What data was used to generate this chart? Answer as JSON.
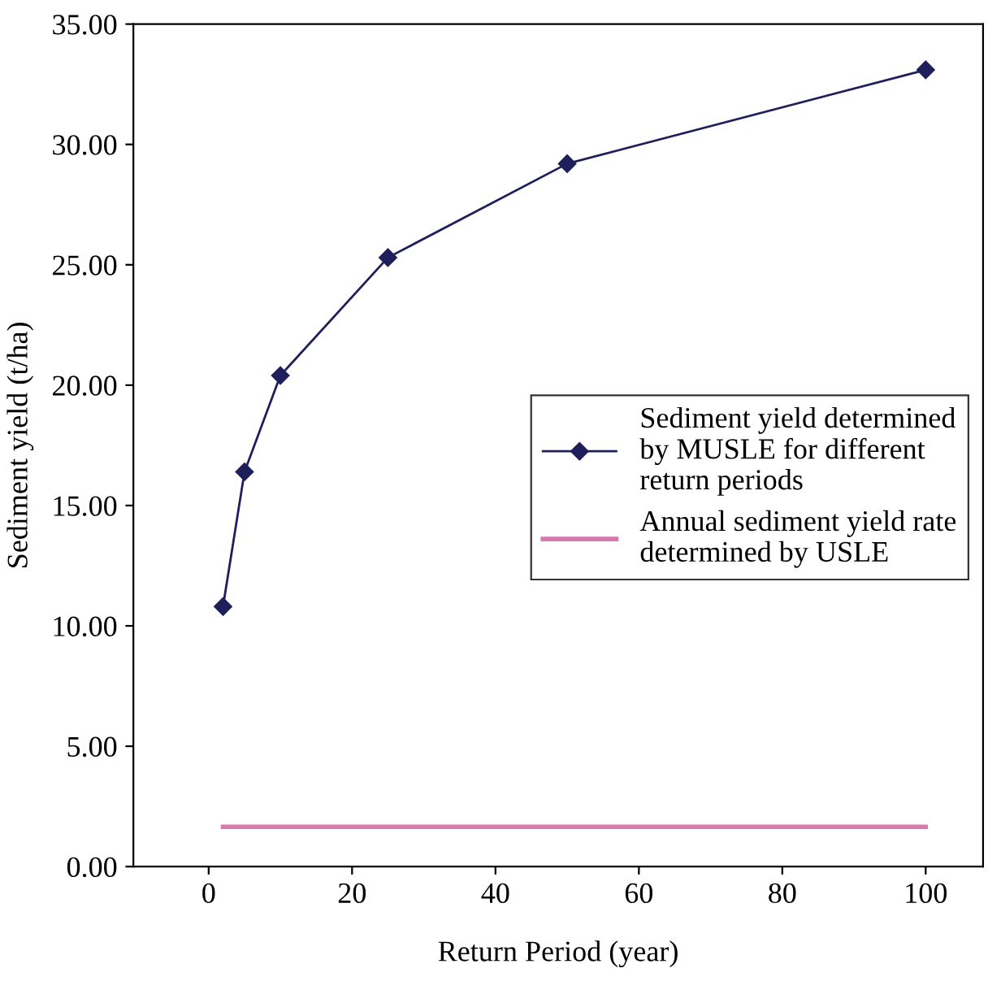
{
  "chart_data": {
    "type": "line",
    "xlabel": "Return Period (year)",
    "ylabel": "Sediment yield (t/ha)",
    "xlim": [
      -10.5,
      108
    ],
    "xticks": [
      0,
      20,
      40,
      60,
      80,
      100
    ],
    "ylim": [
      0,
      35
    ],
    "yticks": [
      {
        "value": 0,
        "label": "0.00"
      },
      {
        "value": 5,
        "label": "5.00"
      },
      {
        "value": 10,
        "label": "10.00"
      },
      {
        "value": 15,
        "label": "15.00"
      },
      {
        "value": 20,
        "label": "20.00"
      },
      {
        "value": 25,
        "label": "25.00"
      },
      {
        "value": 30,
        "label": "30.00"
      },
      {
        "value": 35,
        "label": "35.00"
      }
    ],
    "grid": false,
    "legend": "right",
    "series": [
      {
        "name": "Sediment yield determined\nby MUSLE for different\nreturn periods",
        "color": "#1f1f5c",
        "marker": "diamond",
        "x": [
          2,
          5,
          10,
          25,
          50,
          100
        ],
        "values": [
          10.8,
          16.4,
          20.4,
          25.3,
          29.2,
          33.1
        ]
      },
      {
        "name": "Annual sediment yield rate\ndetermined by USLE",
        "color": "#d977b0",
        "marker": "none",
        "x": [
          2,
          100
        ],
        "values": [
          1.65,
          1.65
        ]
      }
    ]
  }
}
